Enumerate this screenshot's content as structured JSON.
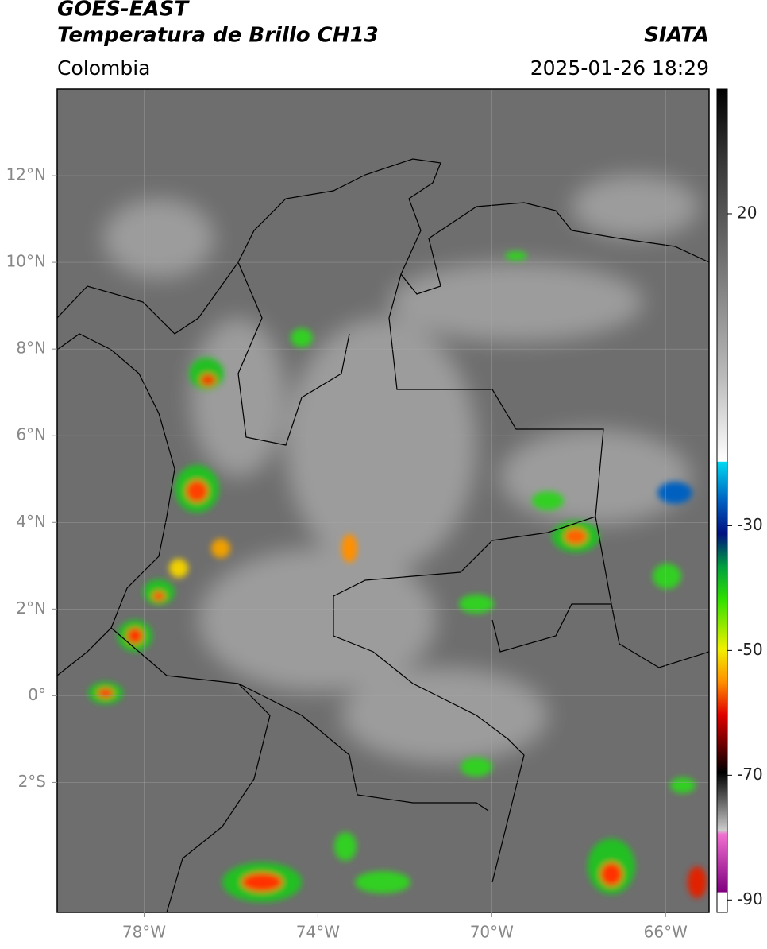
{
  "header": {
    "title": "GOES-EAST",
    "subtitle": "Temperatura de Brillo CH13",
    "source": "SIATA",
    "region": "Colombia",
    "datetime": "2025-01-26 18:29"
  },
  "map": {
    "xlim": [
      -80,
      -65
    ],
    "ylim": [
      -5,
      14
    ],
    "xticks": [
      {
        "value": -78,
        "label": "78°W"
      },
      {
        "value": -74,
        "label": "74°W"
      },
      {
        "value": -70,
        "label": "70°W"
      },
      {
        "value": -66,
        "label": "66°W"
      }
    ],
    "yticks": [
      {
        "value": 12,
        "label": "12°N"
      },
      {
        "value": 10,
        "label": "10°N"
      },
      {
        "value": 8,
        "label": "8°N"
      },
      {
        "value": 6,
        "label": "6°N"
      },
      {
        "value": 4,
        "label": "4°N"
      },
      {
        "value": 2,
        "label": "2°N"
      },
      {
        "value": 0,
        "label": "0°"
      },
      {
        "value": -2,
        "label": "2°S"
      }
    ],
    "grid": true
  },
  "colorbar": {
    "lim": [
      -92,
      40
    ],
    "ticks": [
      20,
      -30,
      -50,
      -70,
      -90
    ]
  }
}
